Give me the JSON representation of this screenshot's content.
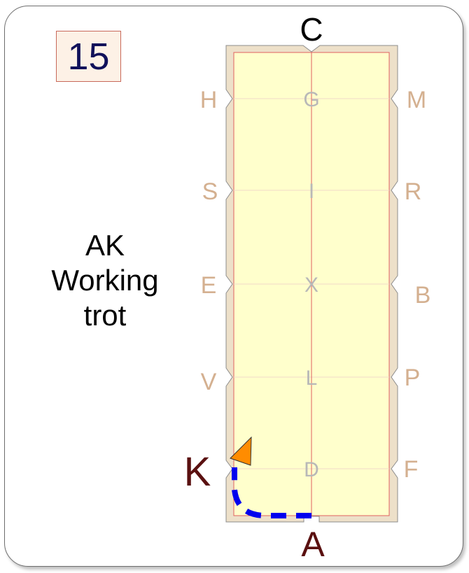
{
  "test_number": "15",
  "movement": {
    "line1": "AK",
    "line2": "Working",
    "line3": "trot"
  },
  "arena": {
    "letters": {
      "C": "C",
      "A": "A",
      "H": "H",
      "S": "S",
      "E": "E",
      "V": "V",
      "K": "K",
      "M": "M",
      "R": "R",
      "B": "B",
      "P": "P",
      "F": "F",
      "G": "G",
      "I": "I",
      "X": "X",
      "L": "L",
      "D": "D"
    },
    "colors": {
      "surface": "#ffffcc",
      "border": "#ede0c9",
      "centerline": "#e06060",
      "marker_letter": "#d4b090",
      "center_letter": "#b8b8b8",
      "highlight_letter": "#5a1010",
      "path": "#0000ee",
      "arrow": "#ff8c00"
    }
  }
}
